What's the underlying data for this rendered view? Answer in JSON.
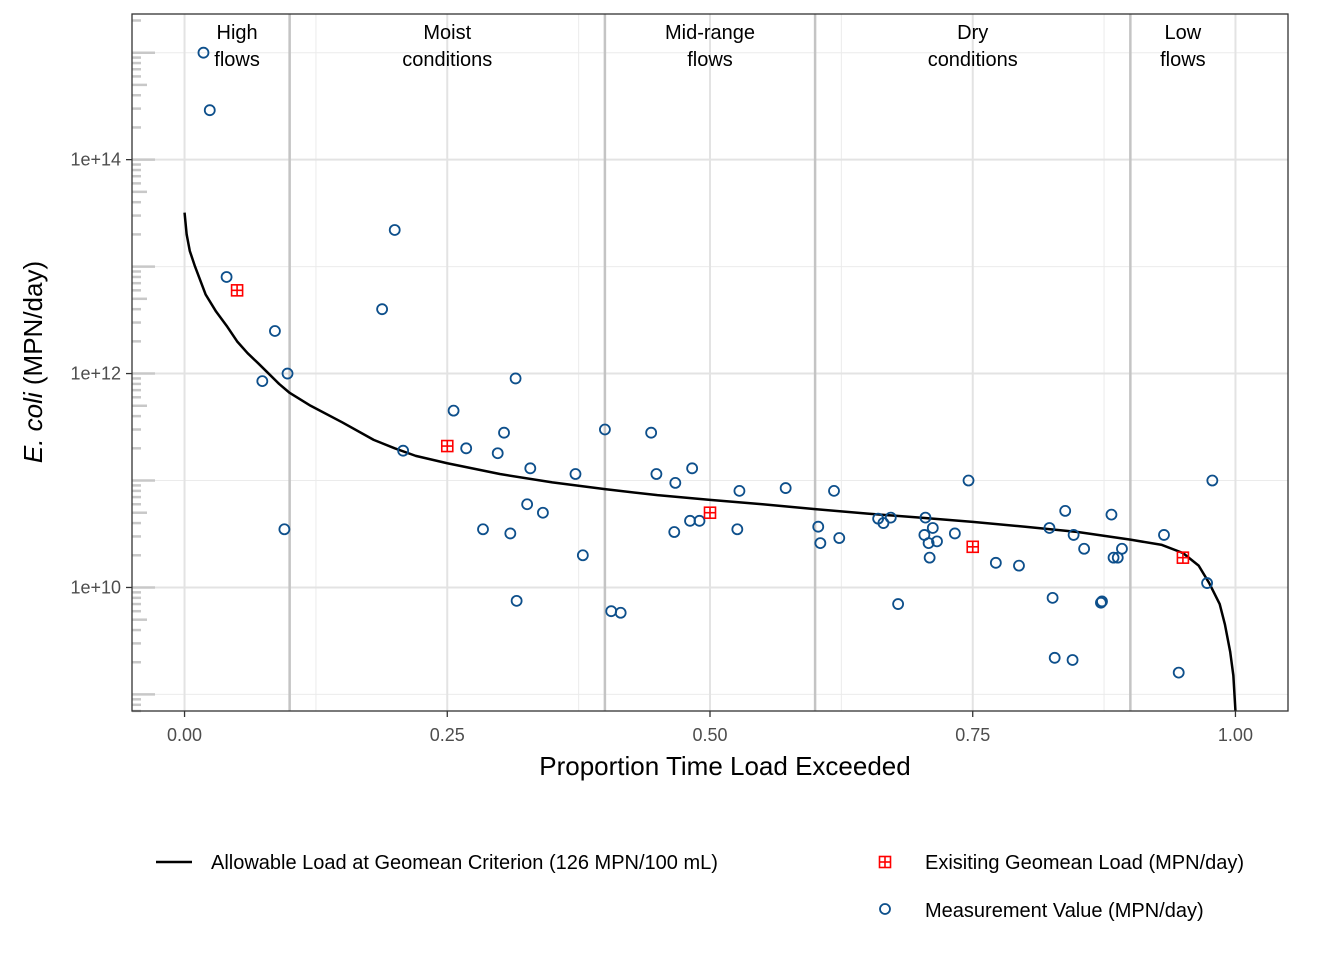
{
  "chart_data": {
    "type": "scatter",
    "title": "",
    "xlabel": "Proportion Time Load Exceeded",
    "ylabel_italic": "E. coli",
    "ylabel_rest": " (MPN/day)",
    "x_ticks": [
      "0.00",
      "0.25",
      "0.50",
      "0.75",
      "1.00"
    ],
    "x_tick_values": [
      0,
      0.25,
      0.5,
      0.75,
      1.0
    ],
    "y_ticks": [
      "1e+10",
      "1e+12",
      "1e+14"
    ],
    "y_tick_values": [
      10000000000.0,
      1000000000000.0,
      100000000000000.0
    ],
    "y_scale": "log10",
    "xlim": [
      -0.05,
      1.05
    ],
    "ylim": [
      700000000.0,
      2300000000000000.0
    ],
    "grid": true,
    "legend_position": "bottom",
    "flow_regions": [
      {
        "label_line1": "High",
        "label_line2": "flows",
        "start": 0.0,
        "end": 0.1
      },
      {
        "label_line1": "Moist",
        "label_line2": "conditions",
        "start": 0.1,
        "end": 0.4
      },
      {
        "label_line1": "Mid-range",
        "label_line2": "flows",
        "start": 0.4,
        "end": 0.6
      },
      {
        "label_line1": "Dry",
        "label_line2": "conditions",
        "start": 0.6,
        "end": 0.9
      },
      {
        "label_line1": "Low",
        "label_line2": "flows",
        "start": 0.9,
        "end": 1.0
      }
    ],
    "series": [
      {
        "name": "Allowable Load at Geomean Criterion (126 MPN/100 mL)",
        "kind": "line",
        "color": "#000000",
        "x": [
          0.0,
          0.002,
          0.005,
          0.01,
          0.02,
          0.03,
          0.04,
          0.05,
          0.06,
          0.07,
          0.08,
          0.09,
          0.1,
          0.12,
          0.15,
          0.18,
          0.2,
          0.22,
          0.25,
          0.3,
          0.35,
          0.4,
          0.45,
          0.5,
          0.55,
          0.6,
          0.65,
          0.7,
          0.75,
          0.8,
          0.85,
          0.9,
          0.93,
          0.95,
          0.965,
          0.975,
          0.985,
          0.99,
          0.995,
          0.998,
          1.0
        ],
        "y": [
          32000000000000.0,
          20000000000000.0,
          14000000000000.0,
          10000000000000.0,
          5500000000000.0,
          3800000000000.0,
          2800000000000.0,
          2000000000000.0,
          1550000000000.0,
          1250000000000.0,
          1000000000000.0,
          800000000000.0,
          660000000000.0,
          500000000000.0,
          350000000000.0,
          240000000000.0,
          200000000000.0,
          170000000000.0,
          145000000000.0,
          115000000000.0,
          96000000000.0,
          83000000000.0,
          73000000000.0,
          66000000000.0,
          60000000000.0,
          54000000000.0,
          49000000000.0,
          45000000000.0,
          41000000000.0,
          37000000000.0,
          33000000000.0,
          28000000000.0,
          25000000000.0,
          21000000000.0,
          16000000000.0,
          11000000000.0,
          7000000000.0,
          4500000000.0,
          2500000000.0,
          1500000000.0,
          700000000.0
        ]
      },
      {
        "name": "Exisiting Geomean Load (MPN/day)",
        "kind": "square-cross",
        "color": "#ff0000",
        "x": [
          0.05,
          0.25,
          0.5,
          0.75,
          0.95
        ],
        "y": [
          6000000000000.0,
          210000000000.0,
          50000000000.0,
          24000000000.0,
          19000000000.0
        ]
      },
      {
        "name": "Measurement Value (MPN/day)",
        "kind": "circle",
        "color": "#0d4f8b",
        "x": [
          0.018,
          0.024,
          0.04,
          0.086,
          0.074,
          0.098,
          0.095,
          0.188,
          0.2,
          0.208,
          0.256,
          0.268,
          0.284,
          0.298,
          0.304,
          0.31,
          0.316,
          0.315,
          0.326,
          0.329,
          0.341,
          0.372,
          0.379,
          0.4,
          0.406,
          0.415,
          0.444,
          0.449,
          0.466,
          0.467,
          0.481,
          0.483,
          0.49,
          0.526,
          0.528,
          0.572,
          0.603,
          0.605,
          0.618,
          0.623,
          0.66,
          0.665,
          0.672,
          0.679,
          0.704,
          0.705,
          0.708,
          0.709,
          0.712,
          0.716,
          0.733,
          0.746,
          0.772,
          0.794,
          0.823,
          0.826,
          0.828,
          0.838,
          0.845,
          0.846,
          0.856,
          0.872,
          0.873,
          0.882,
          0.884,
          0.888,
          0.892,
          0.932,
          0.946,
          0.973,
          0.978
        ],
        "y": [
          1000000000000000.0,
          290000000000000.0,
          8000000000000.0,
          2500000000000.0,
          850000000000.0,
          1000000000000.0,
          35000000000.0,
          4000000000000.0,
          22000000000000.0,
          190000000000.0,
          450000000000.0,
          200000000000.0,
          35000000000.0,
          180000000000.0,
          280000000000.0,
          32000000000.0,
          7500000000.0,
          900000000000.0,
          60000000000.0,
          130000000000.0,
          50000000000.0,
          115000000000.0,
          20000000000.0,
          300000000000.0,
          6000000000.0,
          5800000000.0,
          280000000000.0,
          115000000000.0,
          33000000000.0,
          95000000000.0,
          42000000000.0,
          130000000000.0,
          42000000000.0,
          35000000000.0,
          80000000000.0,
          85000000000.0,
          37000000000.0,
          26000000000.0,
          80000000000.0,
          29000000000.0,
          44000000000.0,
          40000000000.0,
          45000000000.0,
          7000000000.0,
          31000000000.0,
          45000000000.0,
          26000000000.0,
          19000000000.0,
          36000000000.0,
          27000000000.0,
          32000000000.0,
          100000000000.0,
          17000000000.0,
          16000000000.0,
          36000000000.0,
          8000000000.0,
          2200000000.0,
          52000000000.0,
          2100000000.0,
          31000000000.0,
          23000000000.0,
          7200000000.0,
          7400000000.0,
          48000000000.0,
          19000000000.0,
          19000000000.0,
          23000000000.0,
          31000000000.0,
          1600000000.0,
          11000000000.0,
          100000000000.0
        ]
      }
    ]
  }
}
